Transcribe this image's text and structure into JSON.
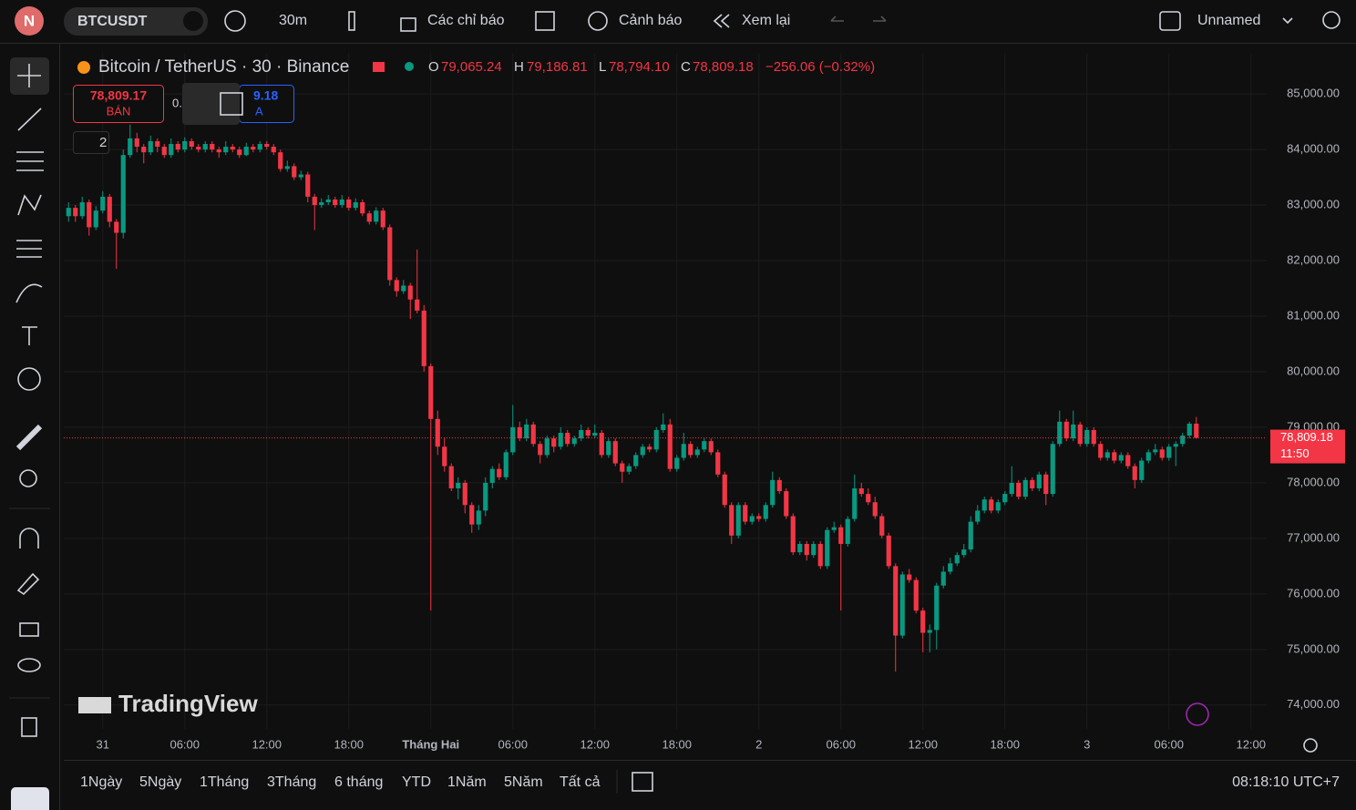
{
  "toolbar": {
    "avatar": "N",
    "symbol": "BTCUSDT",
    "interval": "30m",
    "indicators": "Các chỉ báo",
    "alerts": "Cảnh báo",
    "replay": "Xem lại",
    "layout_name": "Unnamed"
  },
  "legend": {
    "title": "Bitcoin / TetherUS · 30 · Binance",
    "o_key": "O",
    "open": "79,065.24",
    "h_key": "H",
    "high": "79,186.81",
    "l_key": "L",
    "low": "78,794.10",
    "c_key": "C",
    "close": "78,809.18",
    "change": "−256.06 (−0.32%)",
    "sell_price": "78,809.17",
    "sell": "BÁN",
    "spread": "0.",
    "buy_price": "9.18",
    "buy": "A",
    "indicators_count": "2"
  },
  "watermark": "TradingView",
  "timeframes": [
    "1Ngày",
    "5Ngày",
    "1Tháng",
    "3Tháng",
    "6 tháng",
    "YTD",
    "1Năm",
    "5Năm",
    "Tất cả"
  ],
  "clock": "08:18:10 UTC+7",
  "chart_data": {
    "type": "candlestick",
    "up_color": "#089981",
    "down_color": "#f23645",
    "grid": true,
    "last_price_label": "78,809.18",
    "countdown": "11:50",
    "ylim": [
      73570,
      85740
    ],
    "yticks": [
      {
        "value": 85000,
        "label": "85,000.00"
      },
      {
        "value": 84000,
        "label": "84,000.00"
      },
      {
        "value": 83000,
        "label": "83,000.00"
      },
      {
        "value": 82000,
        "label": "82,000.00"
      },
      {
        "value": 81000,
        "label": "81,000.00"
      },
      {
        "value": 80000,
        "label": "80,000.00"
      },
      {
        "value": 79000,
        "label": "79,000.00"
      },
      {
        "value": 78000,
        "label": "78,000.00"
      },
      {
        "value": 77000,
        "label": "77,000.00"
      },
      {
        "value": 76000,
        "label": "76,000.00"
      },
      {
        "value": 75000,
        "label": "75,000.00"
      },
      {
        "value": 74000,
        "label": "74,000.00"
      }
    ],
    "xlim": [
      -0.7,
      175.3
    ],
    "xticks": [
      {
        "value": 5,
        "label": "31"
      },
      {
        "value": 17,
        "label": "06:00"
      },
      {
        "value": 29,
        "label": "12:00"
      },
      {
        "value": 41,
        "label": "18:00"
      },
      {
        "value": 53,
        "label": "Tháng Hai"
      },
      {
        "value": 65,
        "label": "06:00"
      },
      {
        "value": 77,
        "label": "12:00"
      },
      {
        "value": 89,
        "label": "18:00"
      },
      {
        "value": 101,
        "label": "2"
      },
      {
        "value": 113,
        "label": "06:00"
      },
      {
        "value": 125,
        "label": "12:00"
      },
      {
        "value": 137,
        "label": "18:00"
      },
      {
        "value": 149,
        "label": "3"
      },
      {
        "value": 161,
        "label": "06:00"
      },
      {
        "value": 173,
        "label": "12:00"
      }
    ],
    "candles": [
      [
        82800,
        83050,
        82700,
        82950
      ],
      [
        82950,
        83000,
        82700,
        82800
      ],
      [
        82800,
        83150,
        82750,
        83050
      ],
      [
        83050,
        83100,
        82450,
        82600
      ],
      [
        82600,
        82980,
        82550,
        82900
      ],
      [
        82900,
        83250,
        82850,
        83150
      ],
      [
        83150,
        83200,
        82600,
        82700
      ],
      [
        82700,
        82750,
        81850,
        82500
      ],
      [
        82500,
        84000,
        82400,
        83900
      ],
      [
        83900,
        84450,
        83850,
        84200
      ],
      [
        84200,
        84300,
        83950,
        84050
      ],
      [
        84050,
        84100,
        83750,
        83950
      ],
      [
        83950,
        84250,
        83900,
        84150
      ],
      [
        84150,
        84200,
        83950,
        84050
      ],
      [
        84050,
        84100,
        83850,
        83900
      ],
      [
        83900,
        84200,
        83850,
        84100
      ],
      [
        84100,
        84150,
        83950,
        84000
      ],
      [
        84000,
        84220,
        83950,
        84150
      ],
      [
        84150,
        84200,
        84000,
        84050
      ],
      [
        84050,
        84100,
        83950,
        84000
      ],
      [
        84000,
        84150,
        83950,
        84100
      ],
      [
        84100,
        84150,
        83950,
        84000
      ],
      [
        84000,
        84050,
        83850,
        83950
      ],
      [
        83950,
        84150,
        83900,
        84050
      ],
      [
        84050,
        84100,
        83950,
        84000
      ],
      [
        84000,
        84050,
        83850,
        83900
      ],
      [
        83900,
        84120,
        83880,
        84050
      ],
      [
        84050,
        84100,
        83950,
        84000
      ],
      [
        84000,
        84150,
        83950,
        84100
      ],
      [
        84100,
        84150,
        84000,
        84050
      ],
      [
        84050,
        84100,
        83900,
        83950
      ],
      [
        83950,
        84000,
        83600,
        83650
      ],
      [
        83650,
        83800,
        83600,
        83700
      ],
      [
        83700,
        83750,
        83450,
        83500
      ],
      [
        83500,
        83620,
        83450,
        83550
      ],
      [
        83550,
        83600,
        83050,
        83150
      ],
      [
        83150,
        83200,
        82550,
        83000
      ],
      [
        83000,
        83120,
        82950,
        83050
      ],
      [
        83050,
        83180,
        83000,
        83100
      ],
      [
        83100,
        83150,
        82950,
        83000
      ],
      [
        83000,
        83180,
        82950,
        83100
      ],
      [
        83100,
        83150,
        82900,
        82950
      ],
      [
        82950,
        83120,
        82900,
        83050
      ],
      [
        83050,
        83100,
        82800,
        82850
      ],
      [
        82850,
        82900,
        82650,
        82700
      ],
      [
        82700,
        82960,
        82650,
        82900
      ],
      [
        82900,
        82950,
        82550,
        82600
      ],
      [
        82600,
        82650,
        81550,
        81650
      ],
      [
        81650,
        81700,
        81350,
        81450
      ],
      [
        81450,
        81650,
        81400,
        81550
      ],
      [
        81550,
        81600,
        80950,
        81300
      ],
      [
        81300,
        82200,
        81050,
        81100
      ],
      [
        81100,
        81200,
        80000,
        80100
      ],
      [
        80100,
        80150,
        75700,
        79150
      ],
      [
        79150,
        79300,
        78500,
        78650
      ],
      [
        78650,
        78800,
        78200,
        78300
      ],
      [
        78300,
        78350,
        77850,
        77900
      ],
      [
        77900,
        78100,
        77700,
        78000
      ],
      [
        78000,
        78050,
        77450,
        77600
      ],
      [
        77600,
        77650,
        77100,
        77250
      ],
      [
        77250,
        77600,
        77150,
        77500
      ],
      [
        77500,
        78100,
        77400,
        78000
      ],
      [
        78000,
        78300,
        77900,
        78250
      ],
      [
        78250,
        78350,
        78050,
        78100
      ],
      [
        78100,
        78600,
        78050,
        78550
      ],
      [
        78550,
        79400,
        78500,
        79000
      ],
      [
        79000,
        79100,
        78750,
        78800
      ],
      [
        78800,
        79150,
        78750,
        79050
      ],
      [
        79050,
        79100,
        78650,
        78700
      ],
      [
        78700,
        78750,
        78350,
        78500
      ],
      [
        78500,
        78850,
        78450,
        78800
      ],
      [
        78800,
        78850,
        78550,
        78650
      ],
      [
        78650,
        79000,
        78600,
        78900
      ],
      [
        78900,
        78950,
        78650,
        78700
      ],
      [
        78700,
        78850,
        78650,
        78800
      ],
      [
        78800,
        79050,
        78750,
        78950
      ],
      [
        78950,
        79000,
        78800,
        78850
      ],
      [
        78850,
        79050,
        78800,
        78900
      ],
      [
        78900,
        78950,
        78450,
        78500
      ],
      [
        78500,
        78800,
        78450,
        78750
      ],
      [
        78750,
        78800,
        78300,
        78350
      ],
      [
        78350,
        78400,
        78000,
        78200
      ],
      [
        78200,
        78350,
        78150,
        78300
      ],
      [
        78300,
        78550,
        78250,
        78500
      ],
      [
        78500,
        78700,
        78450,
        78650
      ],
      [
        78650,
        78700,
        78550,
        78600
      ],
      [
        78600,
        79000,
        78550,
        78950
      ],
      [
        78950,
        79250,
        78900,
        79050
      ],
      [
        79050,
        79150,
        78200,
        78250
      ],
      [
        78250,
        78500,
        78200,
        78450
      ],
      [
        78450,
        78900,
        78400,
        78700
      ],
      [
        78700,
        78750,
        78450,
        78500
      ],
      [
        78500,
        78650,
        78450,
        78600
      ],
      [
        78600,
        78800,
        78550,
        78750
      ],
      [
        78750,
        78800,
        78500,
        78550
      ],
      [
        78550,
        78600,
        78100,
        78150
      ],
      [
        78150,
        78200,
        77550,
        77600
      ],
      [
        77600,
        77650,
        76900,
        77050
      ],
      [
        77050,
        77650,
        77000,
        77600
      ],
      [
        77600,
        77650,
        77250,
        77300
      ],
      [
        77300,
        77450,
        77250,
        77400
      ],
      [
        77400,
        77450,
        77300,
        77350
      ],
      [
        77350,
        77650,
        77300,
        77600
      ],
      [
        77600,
        78200,
        77550,
        78050
      ],
      [
        78050,
        78100,
        77800,
        77850
      ],
      [
        77850,
        77900,
        77350,
        77400
      ],
      [
        77400,
        77450,
        76700,
        76750
      ],
      [
        76750,
        76950,
        76700,
        76900
      ],
      [
        76900,
        76950,
        76600,
        76700
      ],
      [
        76700,
        76950,
        76650,
        76900
      ],
      [
        76900,
        76950,
        76450,
        76500
      ],
      [
        76500,
        77200,
        76450,
        77150
      ],
      [
        77150,
        77300,
        77100,
        77200
      ],
      [
        77200,
        77250,
        75700,
        76900
      ],
      [
        76900,
        77400,
        76850,
        77350
      ],
      [
        77350,
        78150,
        77300,
        77900
      ],
      [
        77900,
        78000,
        77750,
        77800
      ],
      [
        77800,
        77900,
        77600,
        77650
      ],
      [
        77650,
        77750,
        77350,
        77400
      ],
      [
        77400,
        77450,
        77000,
        77050
      ],
      [
        77050,
        77100,
        76450,
        76500
      ],
      [
        76500,
        76550,
        74600,
        75250
      ],
      [
        75250,
        76400,
        75200,
        76350
      ],
      [
        76350,
        76450,
        76200,
        76250
      ],
      [
        76250,
        76300,
        75650,
        75700
      ],
      [
        75700,
        75750,
        74950,
        75300
      ],
      [
        75300,
        75450,
        74950,
        75350
      ],
      [
        75350,
        76200,
        75000,
        76150
      ],
      [
        76150,
        76500,
        76100,
        76400
      ],
      [
        76400,
        76650,
        76350,
        76550
      ],
      [
        76550,
        76750,
        76500,
        76700
      ],
      [
        76700,
        76900,
        76650,
        76800
      ],
      [
        76800,
        77400,
        76750,
        77300
      ],
      [
        77300,
        77600,
        77250,
        77500
      ],
      [
        77500,
        77750,
        77450,
        77700
      ],
      [
        77700,
        77750,
        77450,
        77500
      ],
      [
        77500,
        77700,
        77450,
        77650
      ],
      [
        77650,
        77850,
        77600,
        77800
      ],
      [
        77800,
        78300,
        77750,
        78000
      ],
      [
        78000,
        78050,
        77700,
        77750
      ],
      [
        77750,
        78100,
        77700,
        78050
      ],
      [
        78050,
        78100,
        77850,
        77900
      ],
      [
        77900,
        78200,
        77850,
        78150
      ],
      [
        78150,
        78200,
        77600,
        77800
      ],
      [
        77800,
        78750,
        77750,
        78700
      ],
      [
        78700,
        79300,
        78650,
        79100
      ],
      [
        79100,
        79150,
        78750,
        78800
      ],
      [
        78800,
        79300,
        78750,
        79050
      ],
      [
        79050,
        79100,
        78650,
        78700
      ],
      [
        78700,
        79000,
        78650,
        78950
      ],
      [
        78950,
        79000,
        78650,
        78700
      ],
      [
        78700,
        78750,
        78400,
        78450
      ],
      [
        78450,
        78600,
        78400,
        78550
      ],
      [
        78550,
        78600,
        78350,
        78400
      ],
      [
        78400,
        78550,
        78350,
        78500
      ],
      [
        78500,
        78550,
        78250,
        78300
      ],
      [
        78300,
        78350,
        77900,
        78050
      ],
      [
        78050,
        78450,
        78000,
        78400
      ],
      [
        78400,
        78600,
        78350,
        78550
      ],
      [
        78550,
        78700,
        78500,
        78600
      ],
      [
        78600,
        78650,
        78400,
        78450
      ],
      [
        78450,
        78700,
        78400,
        78650
      ],
      [
        78650,
        78750,
        78300,
        78700
      ],
      [
        78700,
        78900,
        78650,
        78850
      ],
      [
        78850,
        79100,
        78800,
        79065.24
      ],
      [
        79065.24,
        79186.81,
        78794.1,
        78809.18
      ]
    ]
  }
}
